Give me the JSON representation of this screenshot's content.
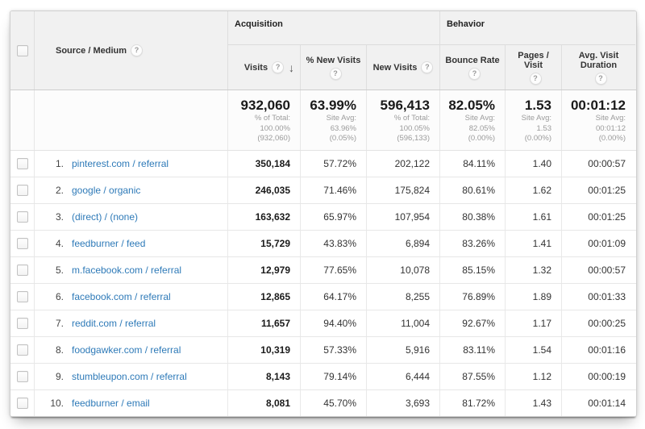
{
  "icons": {
    "help": "?",
    "sort_desc": "↓"
  },
  "colors": {
    "link": "#2e7ab8",
    "header_bg": "#f1f1f1",
    "border": "#e7e7e7"
  },
  "table": {
    "source_header": "Source / Medium",
    "groups": {
      "acquisition": "Acquisition",
      "behavior": "Behavior"
    },
    "columns": {
      "visits": "Visits",
      "pct_new_visits": "% New Visits",
      "new_visits": "New Visits",
      "bounce_rate": "Bounce Rate",
      "pages_visit": "Pages / Visit",
      "avg_visit_duration": "Avg. Visit Duration"
    },
    "summary": {
      "visits": {
        "value": "932,060",
        "lines": [
          "% of Total:",
          "100.00%",
          "(932,060)"
        ]
      },
      "pct_new_visits": {
        "value": "63.99%",
        "lines": [
          "Site Avg:",
          "63.96%",
          "(0.05%)"
        ]
      },
      "new_visits": {
        "value": "596,413",
        "lines": [
          "% of Total:",
          "100.05%",
          "(596,133)"
        ]
      },
      "bounce_rate": {
        "value": "82.05%",
        "lines": [
          "Site Avg:",
          "82.05%",
          "(0.00%)"
        ]
      },
      "pages_visit": {
        "value": "1.53",
        "lines": [
          "Site Avg:",
          "1.53",
          "(0.00%)"
        ]
      },
      "avg_visit_duration": {
        "value": "00:01:12",
        "lines": [
          "Site Avg:",
          "00:01:12",
          "(0.00%)"
        ]
      }
    },
    "rows": [
      {
        "rank": "1.",
        "source": "pinterest.com / referral",
        "visits": "350,184",
        "pct_new_visits": "57.72%",
        "new_visits": "202,122",
        "bounce_rate": "84.11%",
        "pages_visit": "1.40",
        "avg_visit_duration": "00:00:57"
      },
      {
        "rank": "2.",
        "source": "google / organic",
        "visits": "246,035",
        "pct_new_visits": "71.46%",
        "new_visits": "175,824",
        "bounce_rate": "80.61%",
        "pages_visit": "1.62",
        "avg_visit_duration": "00:01:25"
      },
      {
        "rank": "3.",
        "source": "(direct) / (none)",
        "visits": "163,632",
        "pct_new_visits": "65.97%",
        "new_visits": "107,954",
        "bounce_rate": "80.38%",
        "pages_visit": "1.61",
        "avg_visit_duration": "00:01:25"
      },
      {
        "rank": "4.",
        "source": "feedburner / feed",
        "visits": "15,729",
        "pct_new_visits": "43.83%",
        "new_visits": "6,894",
        "bounce_rate": "83.26%",
        "pages_visit": "1.41",
        "avg_visit_duration": "00:01:09"
      },
      {
        "rank": "5.",
        "source": "m.facebook.com / referral",
        "visits": "12,979",
        "pct_new_visits": "77.65%",
        "new_visits": "10,078",
        "bounce_rate": "85.15%",
        "pages_visit": "1.32",
        "avg_visit_duration": "00:00:57"
      },
      {
        "rank": "6.",
        "source": "facebook.com / referral",
        "visits": "12,865",
        "pct_new_visits": "64.17%",
        "new_visits": "8,255",
        "bounce_rate": "76.89%",
        "pages_visit": "1.89",
        "avg_visit_duration": "00:01:33"
      },
      {
        "rank": "7.",
        "source": "reddit.com / referral",
        "visits": "11,657",
        "pct_new_visits": "94.40%",
        "new_visits": "11,004",
        "bounce_rate": "92.67%",
        "pages_visit": "1.17",
        "avg_visit_duration": "00:00:25"
      },
      {
        "rank": "8.",
        "source": "foodgawker.com / referral",
        "visits": "10,319",
        "pct_new_visits": "57.33%",
        "new_visits": "5,916",
        "bounce_rate": "83.11%",
        "pages_visit": "1.54",
        "avg_visit_duration": "00:01:16"
      },
      {
        "rank": "9.",
        "source": "stumbleupon.com / referral",
        "visits": "8,143",
        "pct_new_visits": "79.14%",
        "new_visits": "6,444",
        "bounce_rate": "87.55%",
        "pages_visit": "1.12",
        "avg_visit_duration": "00:00:19"
      },
      {
        "rank": "10.",
        "source": "feedburner / email",
        "visits": "8,081",
        "pct_new_visits": "45.70%",
        "new_visits": "3,693",
        "bounce_rate": "81.72%",
        "pages_visit": "1.43",
        "avg_visit_duration": "00:01:14"
      }
    ]
  }
}
